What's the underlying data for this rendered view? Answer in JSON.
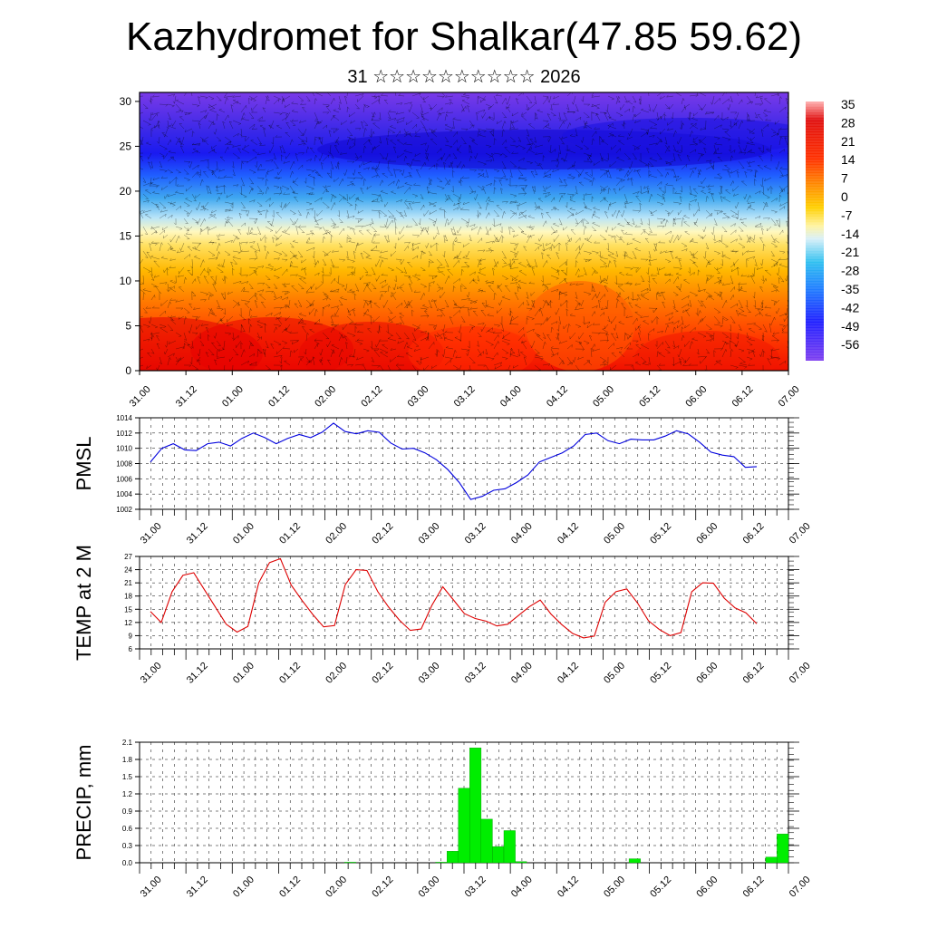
{
  "title": "Kazhydromet for Shalkar(47.85 59.62)",
  "subtitle": "31 ☆☆☆☆☆☆☆☆☆☆ 2026",
  "time_labels": [
    "31.00",
    "31.12",
    "01.00",
    "01.12",
    "02.00",
    "02.12",
    "03.00",
    "03.12",
    "04.00",
    "04.12",
    "05.00",
    "05.12",
    "06.00",
    "06.12",
    "07.00"
  ],
  "chart_data": [
    {
      "type": "heatmap",
      "name": "temperature-wind cross-section",
      "y_ticks": [
        0,
        5,
        10,
        15,
        20,
        25,
        30
      ],
      "ylim": [
        0,
        31
      ],
      "colorbar_labels": [
        "35",
        "28",
        "21",
        "14",
        "7",
        "0",
        "-7",
        "-14",
        "-21",
        "-28",
        "-35",
        "-42",
        "-49",
        "-56"
      ]
    },
    {
      "type": "line",
      "ylabel": "PMSL",
      "ylim": [
        1002,
        1014
      ],
      "y_ticks": [
        1002,
        1004,
        1006,
        1008,
        1010,
        1012,
        1014
      ],
      "color": "#0000dd",
      "values": [
        1008.2,
        1010.0,
        1010.6,
        1009.8,
        1009.7,
        1010.6,
        1010.8,
        1010.3,
        1011.3,
        1012.0,
        1011.4,
        1010.6,
        1011.3,
        1011.8,
        1011.4,
        1012.1,
        1013.3,
        1012.2,
        1011.9,
        1012.3,
        1012.1,
        1010.7,
        1009.9,
        1010.0,
        1009.4,
        1008.5,
        1007.2,
        1005.5,
        1003.3,
        1003.7,
        1004.5,
        1004.7,
        1005.5,
        1006.5,
        1008.2,
        1008.8,
        1009.4,
        1010.3,
        1011.8,
        1012.0,
        1011.0,
        1010.6,
        1011.2,
        1011.1,
        1011.1,
        1011.6,
        1012.3,
        1011.9,
        1010.8,
        1009.5,
        1009.1,
        1008.9,
        1007.5,
        1007.6
      ]
    },
    {
      "type": "line",
      "ylabel": "TEMP at 2 M",
      "ylim": [
        6,
        27
      ],
      "y_ticks": [
        6,
        9,
        12,
        15,
        18,
        21,
        24,
        27
      ],
      "color": "#dd0000",
      "values": [
        14.5,
        12.0,
        19.0,
        22.7,
        23.3,
        19.4,
        15.5,
        11.6,
        9.8,
        11.1,
        21.0,
        25.6,
        26.5,
        20.5,
        17.0,
        13.8,
        11.0,
        11.3,
        20.6,
        24.0,
        23.8,
        19.0,
        15.5,
        12.5,
        10.2,
        10.5,
        15.9,
        20.1,
        17.1,
        14.0,
        12.9,
        12.3,
        11.2,
        11.6,
        13.6,
        15.6,
        17.1,
        13.9,
        11.5,
        9.5,
        8.5,
        8.9,
        16.6,
        19.0,
        19.6,
        16.4,
        12.4,
        10.4,
        9.0,
        9.7,
        19.0,
        21.0,
        20.9,
        17.5,
        15.3,
        14.2,
        11.7
      ]
    },
    {
      "type": "bar",
      "ylabel": "PRECIP, mm",
      "ylim": [
        0,
        2.1
      ],
      "y_ticks": [
        "0.0",
        "0.3",
        "0.6",
        "0.9",
        "1.2",
        "1.5",
        "1.8",
        "2.1"
      ],
      "color": "#00ee00",
      "values": [
        0,
        0,
        0,
        0,
        0,
        0,
        0,
        0,
        0,
        0,
        0,
        0,
        0,
        0,
        0,
        0,
        0,
        0,
        0.01,
        0,
        0,
        0,
        0,
        0,
        0,
        0,
        0.01,
        0.2,
        1.3,
        2.0,
        0.76,
        0.28,
        0.56,
        0.02,
        0,
        0,
        0,
        0,
        0,
        0,
        0,
        0,
        0,
        0.07,
        0,
        0,
        0,
        0,
        0,
        0,
        0,
        0,
        0,
        0,
        0,
        0.1,
        0.5
      ]
    }
  ]
}
